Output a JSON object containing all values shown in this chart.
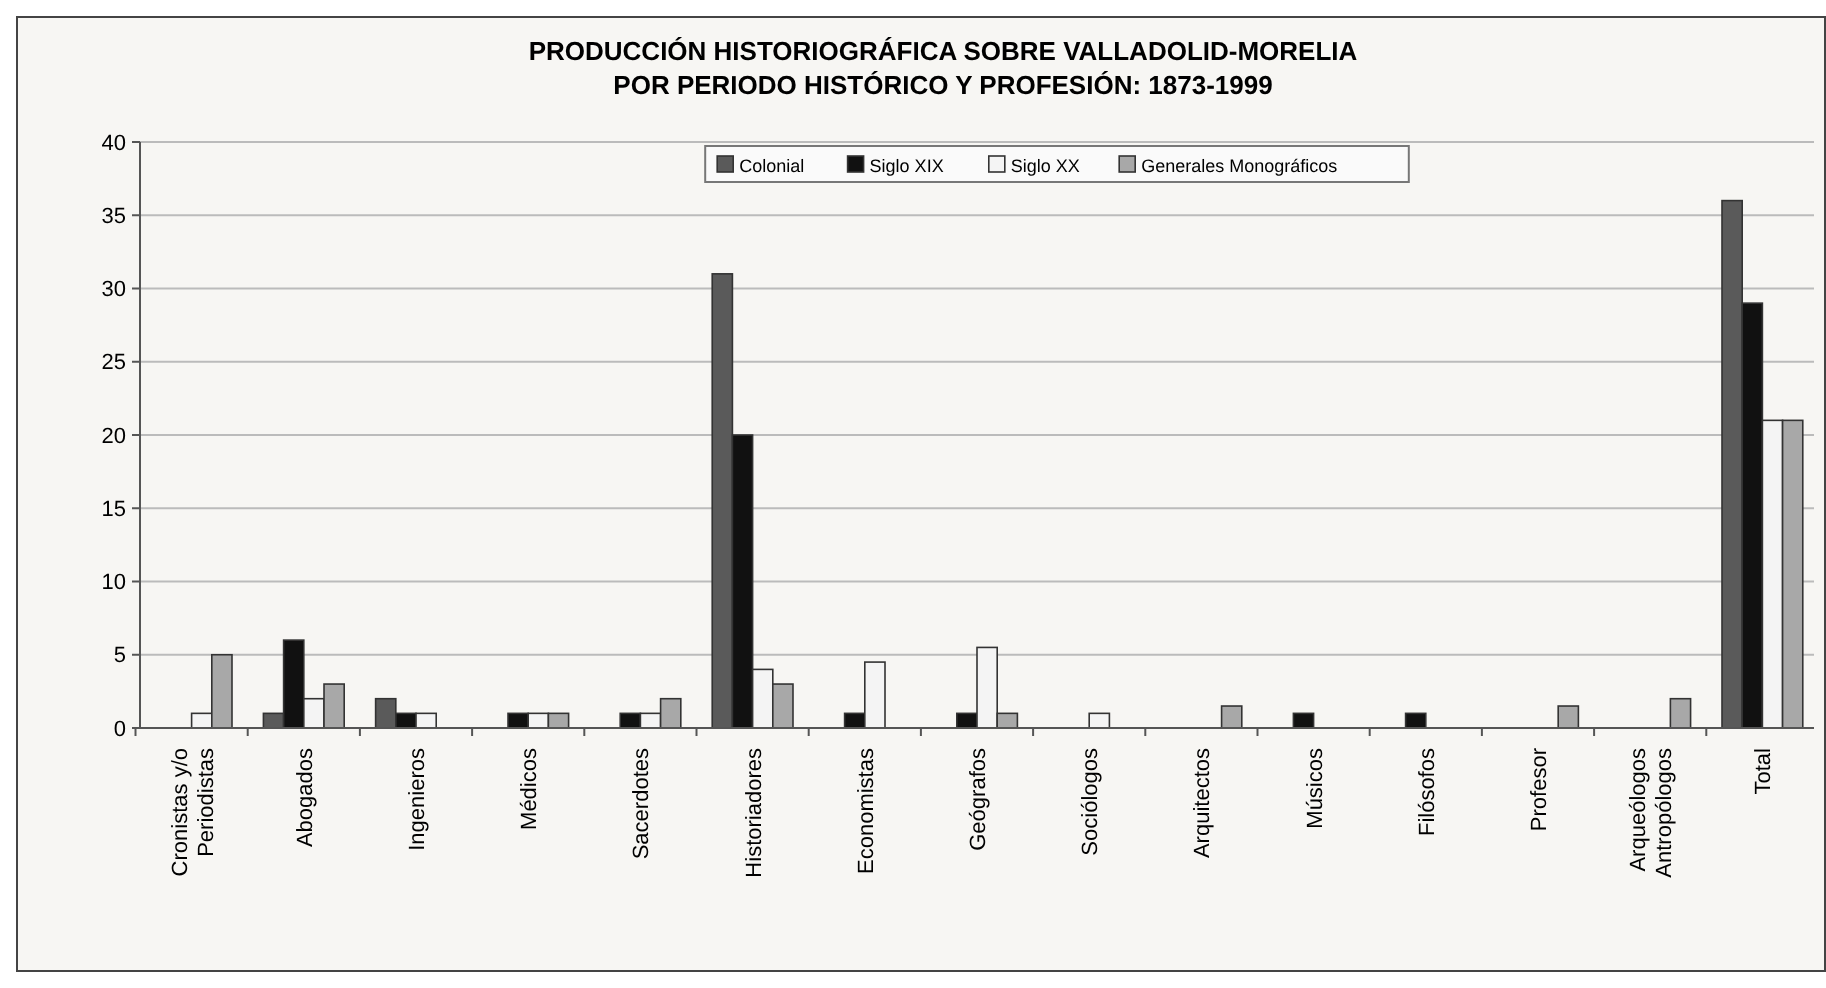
{
  "chart_data": {
    "type": "bar",
    "title": "PRODUCCIÓN HISTORIOGRÁFICA SOBRE VALLADOLID-MORELIA\nPOR PERIODO HISTÓRICO Y PROFESIÓN: 1873-1999",
    "categories": [
      "Cronistas y/o\nPeriodistas",
      "Abogados",
      "Ingenieros",
      "Médicos",
      "Sacerdotes",
      "Historiadores",
      "Economistas",
      "Geógrafos",
      "Sociólogos",
      "Arquitectos",
      "Músicos",
      "Filósofos",
      "Profesor",
      "Arqueólogos\nAntropólogos",
      "Total"
    ],
    "series": [
      {
        "name": "Colonial",
        "color": "#5a5a5a",
        "values": [
          0,
          1,
          2,
          0,
          0,
          31,
          0,
          0,
          0,
          0,
          0,
          0,
          0,
          0,
          36
        ]
      },
      {
        "name": "Siglo XIX",
        "color": "#111111",
        "values": [
          0,
          6,
          1,
          1,
          1,
          20,
          1,
          1,
          0,
          0,
          1,
          1,
          0,
          0,
          29
        ]
      },
      {
        "name": "Siglo XX",
        "color": "#f4f4f4",
        "values": [
          1,
          2,
          1,
          1,
          1,
          4,
          4.5,
          5.5,
          1,
          0,
          0,
          0,
          0,
          0,
          21
        ]
      },
      {
        "name": "Generales Monográficos",
        "color": "#a8a8a8",
        "values": [
          5,
          3,
          0,
          1,
          2,
          3,
          0,
          1,
          0,
          1.5,
          0,
          0,
          1.5,
          2,
          21
        ]
      }
    ],
    "ylim": [
      0,
      40
    ],
    "yticks": [
      0,
      5,
      10,
      15,
      20,
      25,
      30,
      35,
      40
    ],
    "grid": "y",
    "legend": "top"
  }
}
